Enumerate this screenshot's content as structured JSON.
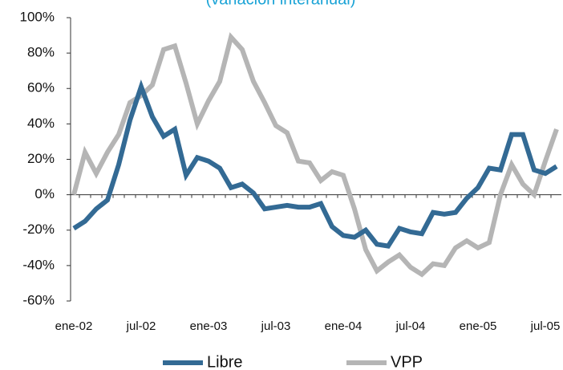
{
  "chart_data": {
    "type": "line",
    "subtitle": "(variación interanual)",
    "categories": [
      "ene-02",
      null,
      null,
      null,
      null,
      null,
      "jul-02",
      null,
      null,
      null,
      null,
      null,
      "ene-03",
      null,
      null,
      null,
      null,
      null,
      "jul-03",
      null,
      null,
      null,
      null,
      null,
      "ene-04",
      null,
      null,
      null,
      null,
      null,
      "jul-04",
      null,
      null,
      null,
      null,
      null,
      "ene-05",
      null,
      null,
      null,
      null,
      null,
      "jul-05",
      null
    ],
    "series": [
      {
        "name": "Libre",
        "color": "#336a94",
        "values": [
          -19,
          -15,
          -8,
          -3,
          17,
          42,
          61,
          44,
          33,
          37,
          11,
          21,
          19,
          15,
          4,
          6,
          1,
          -8,
          -7,
          -6,
          -7,
          -7,
          -5,
          -18,
          -23,
          -24,
          -20,
          -28,
          -29,
          -19,
          -21,
          -22,
          -10,
          -11,
          -10,
          -2,
          4,
          15,
          14,
          34,
          34,
          14,
          12,
          16
        ]
      },
      {
        "name": "VPP",
        "color": "#b5b5b5",
        "values": [
          0,
          24,
          12,
          24,
          34,
          52,
          56,
          62,
          82,
          84,
          63,
          40,
          53,
          64,
          89,
          82,
          64,
          52,
          39,
          35,
          19,
          18,
          8,
          13,
          11,
          -8,
          -31,
          -43,
          -38,
          -34,
          -41,
          -45,
          -39,
          -40,
          -30,
          -26,
          -30,
          -27,
          0,
          17,
          6,
          0,
          19,
          37
        ]
      }
    ],
    "ylim": [
      -60,
      100
    ],
    "yticks": [
      {
        "value": -60,
        "label": "-60%"
      },
      {
        "value": -40,
        "label": "-40%"
      },
      {
        "value": -20,
        "label": "-20%"
      },
      {
        "value": 0,
        "label": "0%"
      },
      {
        "value": 20,
        "label": "20%"
      },
      {
        "value": 40,
        "label": "40%"
      },
      {
        "value": 60,
        "label": "60%"
      },
      {
        "value": 80,
        "label": "80%"
      },
      {
        "value": 100,
        "label": "100%"
      }
    ]
  }
}
